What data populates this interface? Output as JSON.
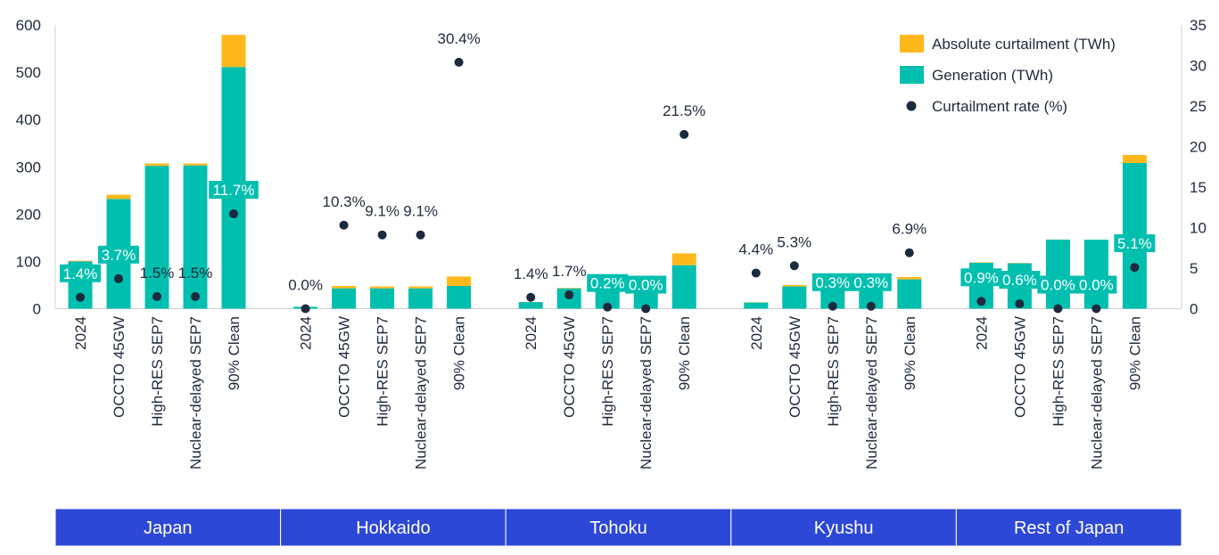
{
  "chart_data": {
    "type": "bar",
    "stacked": true,
    "regions": [
      "Japan",
      "Hokkaido",
      "Tohoku",
      "Kyushu",
      "Rest of Japan"
    ],
    "scenarios": [
      "2024",
      "OCCTO 45GW",
      "High-RES SEP7",
      "Nuclear-delayed SEP7",
      "90% Clean"
    ],
    "series": [
      {
        "name": "Generation (TWh)",
        "color": "#00bfae",
        "values": [
          [
            100,
            232,
            302,
            303,
            511
          ],
          [
            4,
            43,
            43,
            43,
            48
          ],
          [
            14,
            43,
            65,
            65,
            92
          ],
          [
            13,
            47,
            68,
            68,
            62
          ],
          [
            97,
            96,
            146,
            146,
            308
          ]
        ]
      },
      {
        "name": "Absolute curtailment (TWh)",
        "color": "#ffb81c",
        "values": [
          [
            1.5,
            9,
            5,
            4,
            68
          ],
          [
            0,
            5,
            4,
            4,
            20
          ],
          [
            0.2,
            1,
            0.1,
            0,
            25
          ],
          [
            0.6,
            3,
            0.2,
            0.2,
            5
          ],
          [
            1,
            0.6,
            0.2,
            0,
            17
          ]
        ]
      },
      {
        "name": "Curtailment rate (%)",
        "color": "#1c2a3e",
        "axis": "right",
        "values": [
          [
            1.4,
            3.7,
            1.5,
            1.5,
            11.7
          ],
          [
            0.0,
            10.3,
            9.1,
            9.1,
            30.4
          ],
          [
            1.4,
            1.7,
            0.2,
            0.0,
            21.5
          ],
          [
            4.4,
            5.3,
            0.3,
            0.3,
            6.9
          ],
          [
            0.9,
            0.6,
            0.0,
            0.0,
            5.1
          ]
        ],
        "labels": [
          [
            "1.4%",
            "3.7%",
            "1.5%",
            "1.5%",
            "11.7%"
          ],
          [
            "0.0%",
            "10.3%",
            "9.1%",
            "9.1%",
            "30.4%"
          ],
          [
            "1.4%",
            "1.7%",
            "0.2%",
            "0.0%",
            "21.5%"
          ],
          [
            "4.4%",
            "5.3%",
            "0.3%",
            "0.3%",
            "6.9%"
          ],
          [
            "0.9%",
            "0.6%",
            "0.0%",
            "0.0%",
            "5.1%"
          ]
        ],
        "label_boxed": [
          [
            true,
            true,
            false,
            false,
            true
          ],
          [
            false,
            false,
            false,
            false,
            false
          ],
          [
            false,
            false,
            true,
            true,
            false
          ],
          [
            false,
            false,
            true,
            true,
            false
          ],
          [
            true,
            true,
            true,
            true,
            true
          ]
        ]
      }
    ],
    "y_left": {
      "min": 0,
      "max": 600,
      "ticks": [
        0,
        100,
        200,
        300,
        400,
        500,
        600
      ],
      "tick_labels": [
        "0",
        "100",
        "200",
        "300",
        "400",
        "500",
        "600"
      ]
    },
    "y_right": {
      "min": 0,
      "max": 35,
      "ticks": [
        0,
        5,
        10,
        15,
        20,
        25,
        30,
        35
      ],
      "tick_labels": [
        "0",
        "5",
        "10",
        "15",
        "20",
        "25",
        "30",
        "35"
      ]
    },
    "legend": {
      "position": "top-right",
      "entries": [
        "Absolute curtailment (TWh)",
        "Generation (TWh)",
        "Curtailment rate (%)"
      ]
    },
    "region_band_color": "#2d47d6",
    "grid": false,
    "title": "",
    "xlabel": "",
    "ylabel": ""
  }
}
